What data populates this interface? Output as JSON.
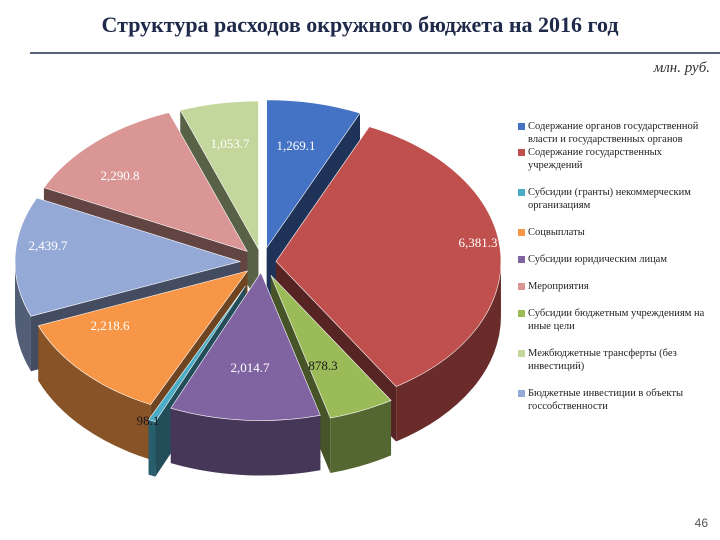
{
  "title": "Структура расходов окружного бюджета на 2016 год",
  "unit": "млн. руб.",
  "page_number": "46",
  "chart_data": {
    "type": "pie",
    "categories": [
      "Содержание органов государственной власти и государственных органов",
      "Содержание государственных учреждений",
      "Субсидии бюджетным учреждениям на иные цели",
      "Субсидии юридическим лицам",
      "Субсидии (гранты) некоммерческим организациям",
      "Соцвыплаты",
      "Бюджетные инвестиции в объекты госсобственности",
      "Мероприятия",
      "Межбюджетные трансферты (без инвестиций)"
    ],
    "values": [
      1269.1,
      6381.3,
      878.3,
      2014.7,
      98.1,
      2218.6,
      2439.7,
      2290.8,
      1053.7
    ],
    "data_labels": [
      "1,269.1",
      "6,381.3",
      "878.3",
      "2,014.7",
      "98.1",
      "2,218.6",
      "2,439.7",
      "2,290.8",
      "1,053.7"
    ],
    "colors": [
      "#4472c4",
      "#c0504d",
      "#9bbb59",
      "#8064a2",
      "#4bacc6",
      "#f79646",
      "#95a9d7",
      "#d99694",
      "#c3d69b"
    ],
    "legend_order": [
      0,
      1,
      4,
      5,
      3,
      7,
      2,
      8,
      6
    ],
    "legend_position": "right"
  }
}
